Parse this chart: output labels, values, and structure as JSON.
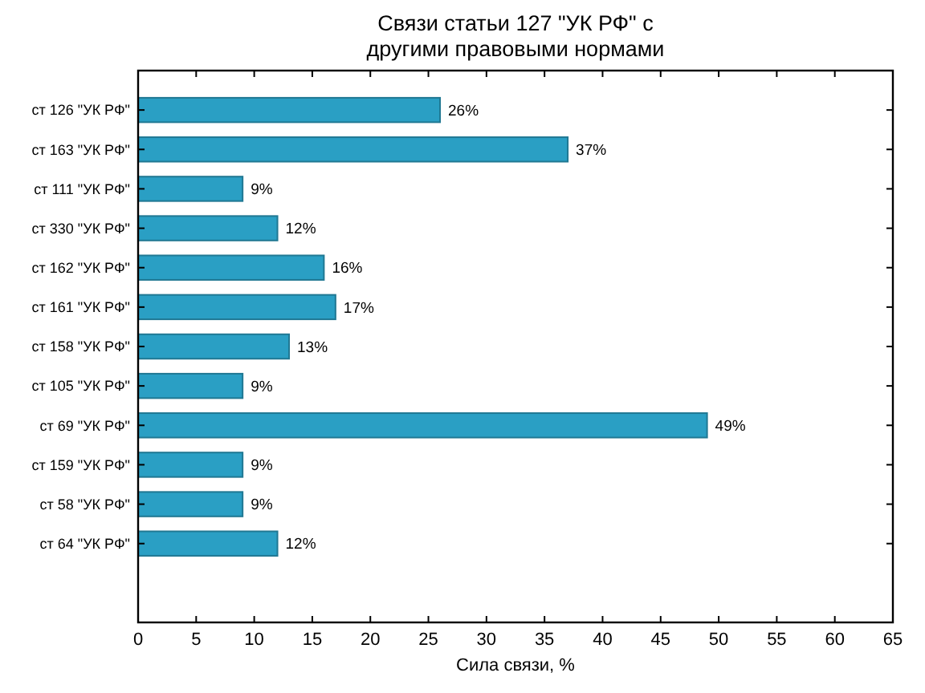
{
  "chart_data": {
    "type": "bar",
    "orientation": "horizontal",
    "title": "Связи статьи 127 \"УК РФ\" с\nдругими правовыми нормами",
    "xlabel": "Сила связи, %",
    "categories": [
      "ст 126 \"УК РФ\"",
      "ст 163 \"УК РФ\"",
      "ст 111 \"УК РФ\"",
      "ст 330 \"УК РФ\"",
      "ст 162 \"УК РФ\"",
      "ст 161 \"УК РФ\"",
      "ст 158 \"УК РФ\"",
      "ст 105 \"УК РФ\"",
      "ст 69 \"УК РФ\"",
      "ст 159 \"УК РФ\"",
      "ст 58 \"УК РФ\"",
      "ст 64 \"УК РФ\""
    ],
    "values": [
      26,
      37,
      9,
      12,
      16,
      17,
      13,
      9,
      49,
      9,
      9,
      12
    ],
    "value_labels": [
      "26%",
      "37%",
      "9%",
      "12%",
      "16%",
      "17%",
      "13%",
      "9%",
      "49%",
      "9%",
      "9%",
      "12%"
    ],
    "color": "#2a9fc4",
    "xlim": [
      0,
      65
    ],
    "xticks": [
      0,
      5,
      10,
      15,
      20,
      25,
      30,
      35,
      40,
      45,
      50,
      55,
      60,
      65
    ]
  }
}
